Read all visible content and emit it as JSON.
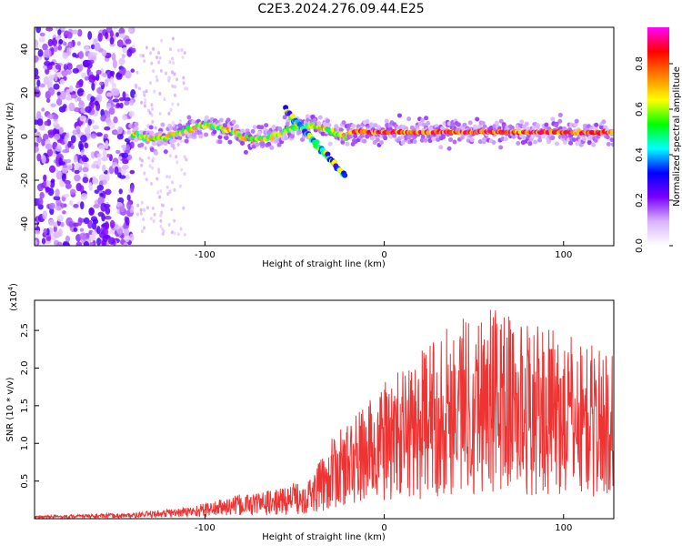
{
  "title": "C2E3.2024.276.09.44.E25",
  "chart_data": [
    {
      "type": "heatmap",
      "description_id": "spectrogram",
      "xlabel": "Height of straight line (km)",
      "ylabel": "Frequency (Hz)",
      "xlim": [
        -195,
        128
      ],
      "ylim": [
        -50,
        50
      ],
      "xticks": [
        -100,
        0,
        100
      ],
      "yticks": [
        -40,
        -20,
        0,
        20,
        40
      ],
      "colorbar": {
        "label": "Normalized spectral amplitude",
        "range": [
          0,
          0.96
        ],
        "ticks": [
          0.0,
          0.2,
          0.4,
          0.6,
          0.8
        ],
        "tick_labels": [
          "0.0",
          "0.2",
          "0.4",
          "0.6",
          "0.8"
        ],
        "colors": [
          "#ffffff",
          "#d9b3ff",
          "#7a00ff",
          "#0000ff",
          "#00ffff",
          "#00ff00",
          "#ffff00",
          "#ff8000",
          "#ff0000",
          "#ff00ff"
        ]
      },
      "features": [
        {
          "name": "noise",
          "x_range": [
            -195,
            -140
          ],
          "y_range": [
            -50,
            50
          ],
          "level": 0.15
        },
        {
          "name": "carrier",
          "x_range": [
            -140,
            128
          ],
          "y_center": 2,
          "level_range": [
            0.4,
            0.85
          ]
        },
        {
          "name": "diagonal-streak",
          "x_range": [
            -55,
            -22
          ],
          "y_range": [
            12,
            -18
          ],
          "level": 0.45
        }
      ]
    },
    {
      "type": "line",
      "description_id": "snr",
      "xlabel": "Height of straight line (km)",
      "ylabel": "SNR (10 * v/v)",
      "exponent_label": "(x10",
      "exponent_sup": "4",
      "exponent_close": ")",
      "xlim": [
        -195,
        128
      ],
      "ylim": [
        0,
        29000
      ],
      "xticks": [
        -100,
        0,
        100
      ],
      "yticks": [
        5000,
        10000,
        15000,
        20000,
        25000
      ],
      "ytick_labels": [
        "0.5",
        "1.0",
        "1.5",
        "2.0",
        "2.5"
      ],
      "color": "#ee3333",
      "series_envelope": [
        {
          "x": -195,
          "y": 300
        },
        {
          "x": -140,
          "y": 600
        },
        {
          "x": -110,
          "y": 1200
        },
        {
          "x": -80,
          "y": 2500
        },
        {
          "x": -60,
          "y": 3000
        },
        {
          "x": -40,
          "y": 4500
        },
        {
          "x": -30,
          "y": 8000
        },
        {
          "x": -15,
          "y": 11000
        },
        {
          "x": 0,
          "y": 14000
        },
        {
          "x": 20,
          "y": 17000
        },
        {
          "x": 40,
          "y": 21000
        },
        {
          "x": 60,
          "y": 22000
        },
        {
          "x": 80,
          "y": 20000
        },
        {
          "x": 100,
          "y": 19000
        },
        {
          "x": 128,
          "y": 17000
        }
      ]
    }
  ]
}
